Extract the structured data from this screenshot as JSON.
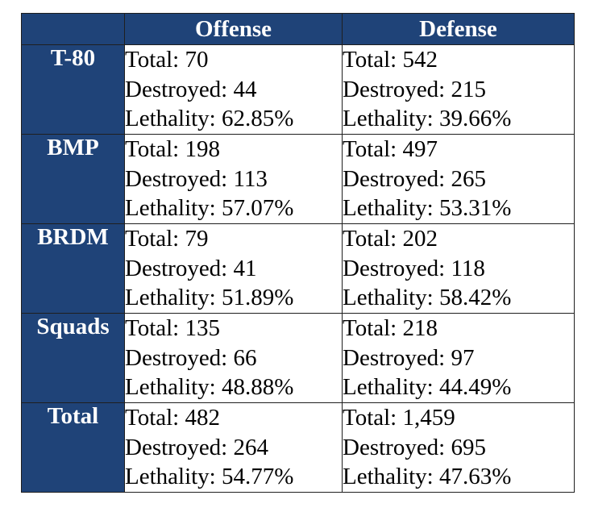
{
  "chart_data": {
    "type": "table",
    "columns": [
      "Offense",
      "Defense"
    ],
    "row_labels": [
      "T-80",
      "BMP",
      "BRDM",
      "Squads",
      "Total"
    ],
    "field_labels": {
      "total": "Total: ",
      "destroyed": "Destroyed: ",
      "lethality": "Lethality: "
    },
    "rows": [
      {
        "label": "T-80",
        "offense": {
          "total": "70",
          "destroyed": "44",
          "lethality": "62.85%"
        },
        "defense": {
          "total": "542",
          "destroyed": "215",
          "lethality": "39.66%"
        }
      },
      {
        "label": "BMP",
        "offense": {
          "total": "198",
          "destroyed": "113",
          "lethality": "57.07%"
        },
        "defense": {
          "total": "497",
          "destroyed": "265",
          "lethality": "53.31%"
        }
      },
      {
        "label": "BRDM",
        "offense": {
          "total": "79",
          "destroyed": "41",
          "lethality": "51.89%"
        },
        "defense": {
          "total": "202",
          "destroyed": "118",
          "lethality": "58.42%"
        }
      },
      {
        "label": "Squads",
        "offense": {
          "total": "135",
          "destroyed": "66",
          "lethality": "48.88%"
        },
        "defense": {
          "total": "218",
          "destroyed": "97",
          "lethality": "44.49%"
        }
      },
      {
        "label": "Total",
        "offense": {
          "total": "482",
          "destroyed": "264",
          "lethality": "54.77%"
        },
        "defense": {
          "total": "1,459",
          "destroyed": "695",
          "lethality": "47.63%"
        }
      }
    ]
  },
  "colors": {
    "header_background": "#1f4378",
    "header_text": "#ffffff",
    "cell_text": "#000000",
    "border": "#1f1f1f"
  }
}
